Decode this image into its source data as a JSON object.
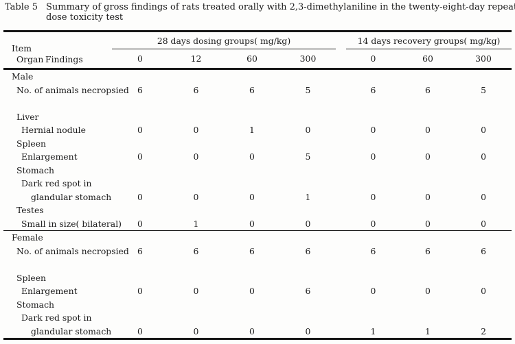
{
  "page": {
    "background": "#fdfdfc",
    "text_color": "#1a1a1a",
    "rule_color": "#161616"
  },
  "title": {
    "label": "Table 5",
    "caption_lines": [
      "Summary of gross findings of rats treated orally with 2,3-dimethylaniline in the twenty-eight-day repeated",
      "dose toxicity test"
    ]
  },
  "table": {
    "header": {
      "item": "Item",
      "organ": "Organ",
      "findings": "Findings",
      "groups": [
        {
          "label": "28 days dosing groups( mg/kg)",
          "doses": [
            "0",
            "12",
            "60",
            "300"
          ]
        },
        {
          "label": "14 days recovery groups( mg/kg)",
          "doses": [
            "0",
            "60",
            "300"
          ]
        }
      ]
    },
    "rows": [
      {
        "label": "Male",
        "indent": 0,
        "values": []
      },
      {
        "label": "No. of animals necropsied",
        "indent": 1,
        "values": [
          "6",
          "6",
          "6",
          "5",
          "6",
          "6",
          "5"
        ]
      },
      {
        "label": "",
        "indent": 0,
        "values": []
      },
      {
        "label": "Liver",
        "indent": 1,
        "values": []
      },
      {
        "label": "Hernial nodule",
        "indent": 2,
        "values": [
          "0",
          "0",
          "1",
          "0",
          "0",
          "0",
          "0"
        ]
      },
      {
        "label": "Spleen",
        "indent": 1,
        "values": []
      },
      {
        "label": "Enlargement",
        "indent": 2,
        "values": [
          "0",
          "0",
          "0",
          "5",
          "0",
          "0",
          "0"
        ]
      },
      {
        "label": "Stomach",
        "indent": 1,
        "values": []
      },
      {
        "label": "Dark red spot in",
        "indent": 2,
        "values": []
      },
      {
        "label": "glandular stomach",
        "indent": 3,
        "values": [
          "0",
          "0",
          "0",
          "1",
          "0",
          "0",
          "0"
        ]
      },
      {
        "label": "Testes",
        "indent": 1,
        "values": []
      },
      {
        "label": "Small in size( bilateral)",
        "indent": 2,
        "values": [
          "0",
          "1",
          "0",
          "0",
          "0",
          "0",
          "0"
        ],
        "section_end": true
      },
      {
        "label": "Female",
        "indent": 0,
        "values": []
      },
      {
        "label": "No. of animals necropsied",
        "indent": 1,
        "values": [
          "6",
          "6",
          "6",
          "6",
          "6",
          "6",
          "6"
        ]
      },
      {
        "label": "",
        "indent": 0,
        "values": []
      },
      {
        "label": "Spleen",
        "indent": 1,
        "values": []
      },
      {
        "label": "Enlargement",
        "indent": 2,
        "values": [
          "0",
          "0",
          "0",
          "6",
          "0",
          "0",
          "0"
        ]
      },
      {
        "label": "Stomach",
        "indent": 1,
        "values": []
      },
      {
        "label": "Dark red spot in",
        "indent": 2,
        "values": []
      },
      {
        "label": "glandular stomach",
        "indent": 3,
        "values": [
          "0",
          "0",
          "0",
          "0",
          "1",
          "1",
          "2"
        ]
      }
    ]
  }
}
